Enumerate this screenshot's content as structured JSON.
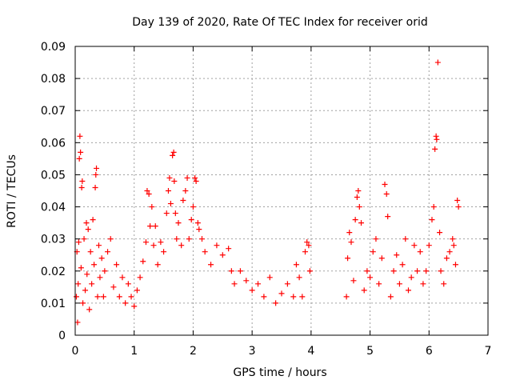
{
  "chart_data": {
    "type": "scatter",
    "title": "Day 139 of 2020, Rate Of TEC Index for receiver orid",
    "xlabel": "GPS time / hours",
    "ylabel": "ROTI / TECUs",
    "xlim": [
      0,
      7
    ],
    "ylim": [
      0,
      0.09
    ],
    "xticks": [
      0,
      1,
      2,
      3,
      4,
      5,
      6,
      7
    ],
    "yticks": [
      0,
      0.01,
      0.02,
      0.03,
      0.04,
      0.05,
      0.06,
      0.07,
      0.08,
      0.09
    ],
    "xtick_labels": [
      "0",
      "1",
      "2",
      "3",
      "4",
      "5",
      "6",
      "7"
    ],
    "ytick_labels": [
      "0",
      "0.01",
      "0.02",
      "0.03",
      "0.04",
      "0.05",
      "0.06",
      "0.07",
      "0.08",
      "0.09"
    ],
    "grid": true,
    "legend": "none",
    "marker": "+",
    "colors": {
      "points": "#ff0000",
      "grid": "#a0a0a0",
      "axes": "#000000"
    },
    "series": [
      {
        "points": [
          [
            0.02,
            0.012
          ],
          [
            0.03,
            0.026
          ],
          [
            0.04,
            0.004
          ],
          [
            0.05,
            0.016
          ],
          [
            0.06,
            0.029
          ],
          [
            0.07,
            0.055
          ],
          [
            0.08,
            0.062
          ],
          [
            0.09,
            0.057
          ],
          [
            0.1,
            0.021
          ],
          [
            0.11,
            0.046
          ],
          [
            0.12,
            0.048
          ],
          [
            0.13,
            0.01
          ],
          [
            0.15,
            0.03
          ],
          [
            0.17,
            0.014
          ],
          [
            0.19,
            0.035
          ],
          [
            0.2,
            0.019
          ],
          [
            0.22,
            0.033
          ],
          [
            0.24,
            0.008
          ],
          [
            0.26,
            0.026
          ],
          [
            0.28,
            0.016
          ],
          [
            0.3,
            0.036
          ],
          [
            0.32,
            0.022
          ],
          [
            0.34,
            0.046
          ],
          [
            0.35,
            0.05
          ],
          [
            0.36,
            0.052
          ],
          [
            0.38,
            0.012
          ],
          [
            0.4,
            0.028
          ],
          [
            0.42,
            0.018
          ],
          [
            0.45,
            0.024
          ],
          [
            0.48,
            0.012
          ],
          [
            0.5,
            0.02
          ],
          [
            0.55,
            0.026
          ],
          [
            0.6,
            0.03
          ],
          [
            0.65,
            0.015
          ],
          [
            0.7,
            0.022
          ],
          [
            0.75,
            0.012
          ],
          [
            0.8,
            0.018
          ],
          [
            0.85,
            0.01
          ],
          [
            0.9,
            0.016
          ],
          [
            0.95,
            0.012
          ],
          [
            1.0,
            0.009
          ],
          [
            1.05,
            0.014
          ],
          [
            1.1,
            0.018
          ],
          [
            1.15,
            0.023
          ],
          [
            1.2,
            0.029
          ],
          [
            1.22,
            0.045
          ],
          [
            1.25,
            0.044
          ],
          [
            1.27,
            0.034
          ],
          [
            1.3,
            0.04
          ],
          [
            1.33,
            0.028
          ],
          [
            1.36,
            0.034
          ],
          [
            1.4,
            0.022
          ],
          [
            1.45,
            0.029
          ],
          [
            1.5,
            0.026
          ],
          [
            1.55,
            0.038
          ],
          [
            1.58,
            0.045
          ],
          [
            1.6,
            0.049
          ],
          [
            1.62,
            0.041
          ],
          [
            1.65,
            0.056
          ],
          [
            1.67,
            0.057
          ],
          [
            1.68,
            0.048
          ],
          [
            1.7,
            0.038
          ],
          [
            1.72,
            0.03
          ],
          [
            1.75,
            0.035
          ],
          [
            1.8,
            0.028
          ],
          [
            1.83,
            0.042
          ],
          [
            1.87,
            0.045
          ],
          [
            1.9,
            0.049
          ],
          [
            1.93,
            0.03
          ],
          [
            1.97,
            0.036
          ],
          [
            2.0,
            0.04
          ],
          [
            2.03,
            0.049
          ],
          [
            2.05,
            0.048
          ],
          [
            2.08,
            0.035
          ],
          [
            2.1,
            0.033
          ],
          [
            2.15,
            0.03
          ],
          [
            2.2,
            0.026
          ],
          [
            2.3,
            0.022
          ],
          [
            2.4,
            0.028
          ],
          [
            2.5,
            0.025
          ],
          [
            2.6,
            0.027
          ],
          [
            2.65,
            0.02
          ],
          [
            2.7,
            0.016
          ],
          [
            2.8,
            0.02
          ],
          [
            2.9,
            0.017
          ],
          [
            3.0,
            0.014
          ],
          [
            3.1,
            0.016
          ],
          [
            3.2,
            0.012
          ],
          [
            3.3,
            0.018
          ],
          [
            3.4,
            0.01
          ],
          [
            3.5,
            0.013
          ],
          [
            3.6,
            0.016
          ],
          [
            3.7,
            0.012
          ],
          [
            3.75,
            0.022
          ],
          [
            3.8,
            0.018
          ],
          [
            3.85,
            0.012
          ],
          [
            3.9,
            0.026
          ],
          [
            3.93,
            0.029
          ],
          [
            3.96,
            0.028
          ],
          [
            3.98,
            0.02
          ],
          [
            4.6,
            0.012
          ],
          [
            4.62,
            0.024
          ],
          [
            4.65,
            0.032
          ],
          [
            4.68,
            0.029
          ],
          [
            4.72,
            0.017
          ],
          [
            4.75,
            0.036
          ],
          [
            4.78,
            0.043
          ],
          [
            4.8,
            0.045
          ],
          [
            4.82,
            0.04
          ],
          [
            4.85,
            0.035
          ],
          [
            4.9,
            0.014
          ],
          [
            4.95,
            0.02
          ],
          [
            5.0,
            0.018
          ],
          [
            5.05,
            0.026
          ],
          [
            5.1,
            0.03
          ],
          [
            5.15,
            0.016
          ],
          [
            5.2,
            0.024
          ],
          [
            5.25,
            0.047
          ],
          [
            5.28,
            0.044
          ],
          [
            5.3,
            0.037
          ],
          [
            5.35,
            0.012
          ],
          [
            5.4,
            0.02
          ],
          [
            5.45,
            0.025
          ],
          [
            5.5,
            0.016
          ],
          [
            5.55,
            0.022
          ],
          [
            5.6,
            0.03
          ],
          [
            5.65,
            0.014
          ],
          [
            5.7,
            0.018
          ],
          [
            5.75,
            0.028
          ],
          [
            5.8,
            0.02
          ],
          [
            5.85,
            0.026
          ],
          [
            5.9,
            0.016
          ],
          [
            5.95,
            0.02
          ],
          [
            6.0,
            0.028
          ],
          [
            6.05,
            0.036
          ],
          [
            6.08,
            0.04
          ],
          [
            6.1,
            0.058
          ],
          [
            6.12,
            0.062
          ],
          [
            6.13,
            0.061
          ],
          [
            6.15,
            0.085
          ],
          [
            6.18,
            0.032
          ],
          [
            6.2,
            0.02
          ],
          [
            6.25,
            0.016
          ],
          [
            6.3,
            0.024
          ],
          [
            6.35,
            0.026
          ],
          [
            6.4,
            0.03
          ],
          [
            6.42,
            0.028
          ],
          [
            6.45,
            0.022
          ],
          [
            6.48,
            0.042
          ],
          [
            6.5,
            0.04
          ]
        ]
      }
    ]
  }
}
